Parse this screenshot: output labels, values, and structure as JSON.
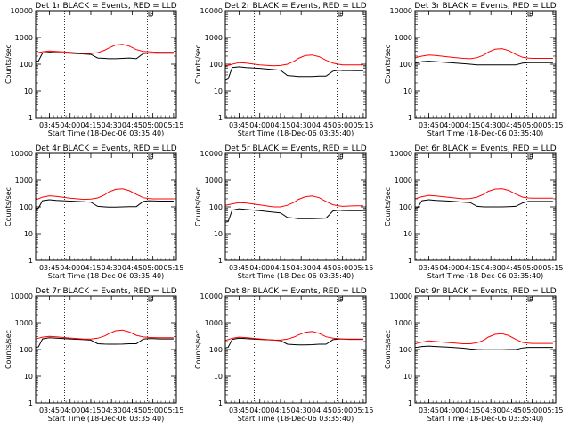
{
  "figure": {
    "xlabel": "Start Time (18-Dec-06 03:35:40)",
    "ylabel": "Counts/sec",
    "x_tick_labels": [
      "03:45",
      "04:00",
      "04:15",
      "04:30",
      "04:45",
      "05:00",
      "05:15"
    ],
    "y_tick_labels": [
      "1",
      "10",
      "100",
      "1000",
      "10000"
    ],
    "corner_marker": "E",
    "colors": {
      "events": "#000000",
      "lld": "#ff0000"
    }
  },
  "chart_data": [
    {
      "type": "line",
      "title": "Det 1r BLACK = Events, RED = LLD",
      "x": [
        "03:35",
        "03:37",
        "03:40",
        "03:45",
        "03:50",
        "04:00",
        "04:10",
        "04:15",
        "04:20",
        "04:25",
        "04:28",
        "04:33",
        "04:38",
        "04:43",
        "04:48",
        "04:53",
        "04:57",
        "05:00",
        "05:05",
        "05:10",
        "05:15"
      ],
      "xlim": [
        "03:35",
        "05:17"
      ],
      "ylim": [
        1,
        10000
      ],
      "yscale": "log",
      "series": [
        {
          "name": "Events",
          "color": "#000000",
          "values": [
            130,
            130,
            260,
            280,
            270,
            255,
            240,
            230,
            170,
            165,
            160,
            160,
            165,
            170,
            160,
            250,
            260,
            260,
            255,
            255,
            255
          ]
        },
        {
          "name": "LLD",
          "color": "#ff0000",
          "values": [
            250,
            270,
            290,
            310,
            300,
            275,
            250,
            250,
            270,
            330,
            400,
            520,
            550,
            470,
            350,
            300,
            290,
            285,
            280,
            280,
            280
          ]
        }
      ]
    },
    {
      "type": "line",
      "title": "Det 2r BLACK = Events, RED = LLD",
      "x": [
        "03:35",
        "03:37",
        "03:40",
        "03:45",
        "03:50",
        "04:00",
        "04:10",
        "04:15",
        "04:20",
        "04:25",
        "04:28",
        "04:33",
        "04:38",
        "04:43",
        "04:48",
        "04:53",
        "04:57",
        "05:00",
        "05:05",
        "05:10",
        "05:15"
      ],
      "xlim": [
        "03:35",
        "05:17"
      ],
      "ylim": [
        1,
        10000
      ],
      "yscale": "log",
      "series": [
        {
          "name": "Events",
          "color": "#000000",
          "values": [
            25,
            28,
            75,
            80,
            75,
            70,
            63,
            60,
            38,
            36,
            35,
            35,
            35,
            36,
            36,
            55,
            60,
            58,
            58,
            57,
            57
          ]
        },
        {
          "name": "LLD",
          "color": "#ff0000",
          "values": [
            85,
            90,
            100,
            115,
            110,
            95,
            88,
            90,
            100,
            130,
            165,
            210,
            220,
            190,
            140,
            110,
            100,
            95,
            95,
            95,
            95
          ]
        }
      ]
    },
    {
      "type": "line",
      "title": "Det 3r BLACK = Events, RED = LLD",
      "x": [
        "03:35",
        "03:37",
        "03:40",
        "03:45",
        "03:50",
        "04:00",
        "04:10",
        "04:15",
        "04:20",
        "04:25",
        "04:28",
        "04:33",
        "04:38",
        "04:43",
        "04:48",
        "04:53",
        "04:57",
        "05:00",
        "05:05",
        "05:10",
        "05:15"
      ],
      "xlim": [
        "03:35",
        "05:17"
      ],
      "ylim": [
        1,
        10000
      ],
      "yscale": "log",
      "series": [
        {
          "name": "Events",
          "color": "#000000",
          "values": [
            110,
            115,
            125,
            130,
            125,
            115,
            105,
            100,
            95,
            95,
            95,
            95,
            95,
            95,
            95,
            110,
            115,
            115,
            115,
            115,
            115
          ]
        },
        {
          "name": "LLD",
          "color": "#ff0000",
          "values": [
            170,
            185,
            200,
            220,
            210,
            185,
            165,
            160,
            175,
            220,
            280,
            360,
            380,
            320,
            230,
            180,
            170,
            165,
            165,
            165,
            165
          ]
        }
      ]
    },
    {
      "type": "line",
      "title": "Det 4r BLACK = Events, RED = LLD",
      "x": [
        "03:35",
        "03:37",
        "03:40",
        "03:45",
        "03:50",
        "04:00",
        "04:10",
        "04:15",
        "04:20",
        "04:25",
        "04:28",
        "04:33",
        "04:38",
        "04:43",
        "04:48",
        "04:53",
        "04:57",
        "05:00",
        "05:05",
        "05:10",
        "05:15"
      ],
      "xlim": [
        "03:35",
        "05:17"
      ],
      "ylim": [
        1,
        10000
      ],
      "yscale": "log",
      "series": [
        {
          "name": "Events",
          "color": "#000000",
          "values": [
            85,
            90,
            170,
            185,
            175,
            165,
            155,
            150,
            105,
            100,
            98,
            98,
            100,
            102,
            102,
            160,
            170,
            168,
            165,
            165,
            165
          ]
        },
        {
          "name": "LLD",
          "color": "#ff0000",
          "values": [
            190,
            200,
            230,
            260,
            245,
            210,
            190,
            195,
            215,
            280,
            360,
            450,
            470,
            400,
            290,
            220,
            205,
            200,
            200,
            200,
            200
          ]
        }
      ]
    },
    {
      "type": "line",
      "title": "Det 5r BLACK = Events, RED = LLD",
      "x": [
        "03:35",
        "03:37",
        "03:40",
        "03:45",
        "03:50",
        "04:00",
        "04:10",
        "04:15",
        "04:20",
        "04:25",
        "04:28",
        "04:33",
        "04:38",
        "04:43",
        "04:48",
        "04:53",
        "04:57",
        "05:00",
        "05:05",
        "05:10",
        "05:15"
      ],
      "xlim": [
        "03:35",
        "05:17"
      ],
      "ylim": [
        1,
        10000
      ],
      "yscale": "log",
      "series": [
        {
          "name": "Events",
          "color": "#000000",
          "values": [
            27,
            28,
            75,
            85,
            80,
            72,
            63,
            60,
            40,
            38,
            36,
            36,
            36,
            37,
            38,
            70,
            75,
            73,
            72,
            72,
            72
          ]
        },
        {
          "name": "LLD",
          "color": "#ff0000",
          "values": [
            115,
            120,
            130,
            145,
            140,
            118,
            100,
            100,
            115,
            150,
            190,
            240,
            255,
            220,
            160,
            120,
            110,
            105,
            108,
            110,
            110
          ]
        }
      ]
    },
    {
      "type": "line",
      "title": "Det 6r BLACK = Events, RED = LLD",
      "x": [
        "03:35",
        "03:37",
        "03:40",
        "03:45",
        "03:50",
        "04:00",
        "04:10",
        "04:15",
        "04:20",
        "04:25",
        "04:28",
        "04:33",
        "04:38",
        "04:43",
        "04:48",
        "04:53",
        "04:57",
        "05:00",
        "05:05",
        "05:10",
        "05:15"
      ],
      "xlim": [
        "03:35",
        "05:17"
      ],
      "ylim": [
        1,
        10000
      ],
      "yscale": "log",
      "series": [
        {
          "name": "Events",
          "color": "#000000",
          "values": [
            90,
            95,
            170,
            185,
            175,
            165,
            150,
            145,
            105,
            100,
            100,
            100,
            100,
            102,
            105,
            140,
            160,
            160,
            160,
            160,
            160
          ]
        },
        {
          "name": "LLD",
          "color": "#ff0000",
          "values": [
            200,
            215,
            240,
            270,
            255,
            225,
            200,
            205,
            230,
            300,
            380,
            460,
            480,
            410,
            300,
            230,
            215,
            210,
            210,
            210,
            210
          ]
        }
      ]
    },
    {
      "type": "line",
      "title": "Det 7r BLACK = Events, RED = LLD",
      "x": [
        "03:35",
        "03:37",
        "03:40",
        "03:45",
        "03:50",
        "04:00",
        "04:10",
        "04:15",
        "04:20",
        "04:25",
        "04:28",
        "04:33",
        "04:38",
        "04:43",
        "04:48",
        "04:53",
        "04:57",
        "05:00",
        "05:05",
        "05:10",
        "05:15"
      ],
      "xlim": [
        "03:35",
        "05:17"
      ],
      "ylim": [
        1,
        10000
      ],
      "yscale": "log",
      "series": [
        {
          "name": "Events",
          "color": "#000000",
          "values": [
            120,
            125,
            250,
            275,
            265,
            250,
            235,
            225,
            165,
            160,
            158,
            158,
            160,
            165,
            165,
            245,
            255,
            255,
            250,
            250,
            250
          ]
        },
        {
          "name": "LLD",
          "color": "#ff0000",
          "values": [
            250,
            265,
            290,
            310,
            300,
            270,
            245,
            245,
            265,
            320,
            390,
            500,
            530,
            450,
            340,
            295,
            285,
            280,
            275,
            275,
            275
          ]
        }
      ]
    },
    {
      "type": "line",
      "title": "Det 8r BLACK = Events, RED = LLD",
      "x": [
        "03:35",
        "03:37",
        "03:40",
        "03:45",
        "03:50",
        "04:00",
        "04:10",
        "04:15",
        "04:20",
        "04:25",
        "04:28",
        "04:33",
        "04:38",
        "04:43",
        "04:48",
        "04:53",
        "04:57",
        "05:00",
        "05:05",
        "05:10",
        "05:15"
      ],
      "xlim": [
        "03:35",
        "05:17"
      ],
      "ylim": [
        1,
        10000
      ],
      "yscale": "log",
      "series": [
        {
          "name": "Events",
          "color": "#000000",
          "values": [
            115,
            120,
            240,
            265,
            255,
            240,
            225,
            215,
            158,
            152,
            150,
            150,
            152,
            158,
            158,
            235,
            245,
            245,
            240,
            240,
            240
          ]
        },
        {
          "name": "LLD",
          "color": "#ff0000",
          "values": [
            220,
            235,
            265,
            290,
            280,
            250,
            225,
            225,
            245,
            295,
            350,
            440,
            470,
            400,
            300,
            265,
            255,
            250,
            248,
            248,
            248
          ]
        }
      ]
    },
    {
      "type": "line",
      "title": "Det 9r BLACK = Events, RED = LLD",
      "x": [
        "03:35",
        "03:37",
        "03:40",
        "03:45",
        "03:50",
        "04:00",
        "04:10",
        "04:15",
        "04:20",
        "04:25",
        "04:28",
        "04:33",
        "04:38",
        "04:43",
        "04:48",
        "04:53",
        "04:57",
        "05:00",
        "05:05",
        "05:10",
        "05:15"
      ],
      "xlim": [
        "03:35",
        "05:17"
      ],
      "ylim": [
        1,
        10000
      ],
      "yscale": "log",
      "series": [
        {
          "name": "Events",
          "color": "#000000",
          "values": [
            120,
            122,
            130,
            135,
            130,
            122,
            112,
            105,
            100,
            98,
            98,
            98,
            98,
            100,
            100,
            115,
            120,
            120,
            120,
            120,
            120
          ]
        },
        {
          "name": "LLD",
          "color": "#ff0000",
          "values": [
            160,
            175,
            190,
            210,
            200,
            180,
            165,
            165,
            180,
            225,
            290,
            370,
            390,
            330,
            240,
            185,
            175,
            170,
            170,
            170,
            170
          ]
        }
      ]
    }
  ]
}
